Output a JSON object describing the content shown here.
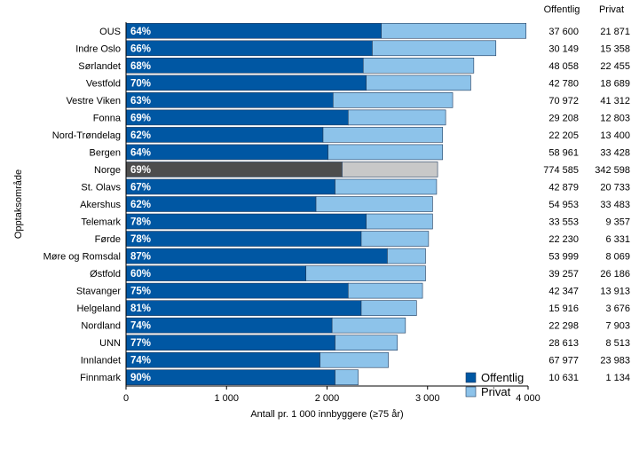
{
  "chart_data": {
    "type": "bar",
    "orientation": "horizontal",
    "stacked": true,
    "categories": [
      "OUS",
      "Indre Oslo",
      "Sørlandet",
      "Vestfold",
      "Vestre Viken",
      "Fonna",
      "Nord-Trøndelag",
      "Bergen",
      "Norge",
      "St. Olavs",
      "Akershus",
      "Telemark",
      "Førde",
      "Møre og Romsdal",
      "Østfold",
      "Stavanger",
      "Helgeland",
      "Nordland",
      "UNN",
      "Innlandet",
      "Finnmark"
    ],
    "highlight_category": "Norge",
    "percent_labels": [
      "64%",
      "66%",
      "68%",
      "70%",
      "63%",
      "69%",
      "62%",
      "64%",
      "69%",
      "67%",
      "62%",
      "78%",
      "78%",
      "87%",
      "60%",
      "75%",
      "81%",
      "74%",
      "77%",
      "74%",
      "90%"
    ],
    "series": [
      {
        "name": "Offentlig",
        "color": "#0057A3",
        "highlight_color": "#4D4D4D",
        "values": [
          2540,
          2450,
          2360,
          2390,
          2060,
          2210,
          1960,
          2010,
          2150,
          2080,
          1890,
          2390,
          2340,
          2600,
          1790,
          2210,
          2340,
          2050,
          2080,
          1930,
          2080
        ]
      },
      {
        "name": "Privat",
        "color": "#8DC3EA",
        "highlight_color": "#C8C8C8",
        "values": [
          1440,
          1230,
          1100,
          1040,
          1190,
          970,
          1190,
          1140,
          950,
          1010,
          1160,
          660,
          670,
          380,
          1190,
          740,
          550,
          730,
          620,
          680,
          230
        ]
      }
    ],
    "table": {
      "headers": [
        "Offentlig",
        "Privat"
      ],
      "rows": [
        [
          "37 600",
          "21 871"
        ],
        [
          "30 149",
          "15 358"
        ],
        [
          "48 058",
          "22 455"
        ],
        [
          "42 780",
          "18 689"
        ],
        [
          "70 972",
          "41 312"
        ],
        [
          "29 208",
          "12 803"
        ],
        [
          "22 205",
          "13 400"
        ],
        [
          "58 961",
          "33 428"
        ],
        [
          "774 585",
          "342 598"
        ],
        [
          "42 879",
          "20 733"
        ],
        [
          "54 953",
          "33 483"
        ],
        [
          "33 553",
          "9 357"
        ],
        [
          "22 230",
          "6 331"
        ],
        [
          "53 999",
          "8 069"
        ],
        [
          "39 257",
          "26 186"
        ],
        [
          "42 347",
          "13 913"
        ],
        [
          "15 916",
          "3 676"
        ],
        [
          "22 298",
          "7 903"
        ],
        [
          "28 613",
          "8 513"
        ],
        [
          "67 977",
          "23 983"
        ],
        [
          "10 631",
          "1 134"
        ]
      ]
    },
    "xlabel": "Antall pr. 1 000 innbyggere (≥75 år)",
    "ylabel": "Opptaksområde",
    "xlim": [
      0,
      4000
    ],
    "xticks": [
      0,
      1000,
      2000,
      3000,
      4000
    ],
    "xtick_labels": [
      "0",
      "1 000",
      "2 000",
      "3 000",
      "4 000"
    ],
    "grid": false,
    "legend_position": "bottom-right",
    "legend": [
      "Offentlig",
      "Privat"
    ]
  }
}
